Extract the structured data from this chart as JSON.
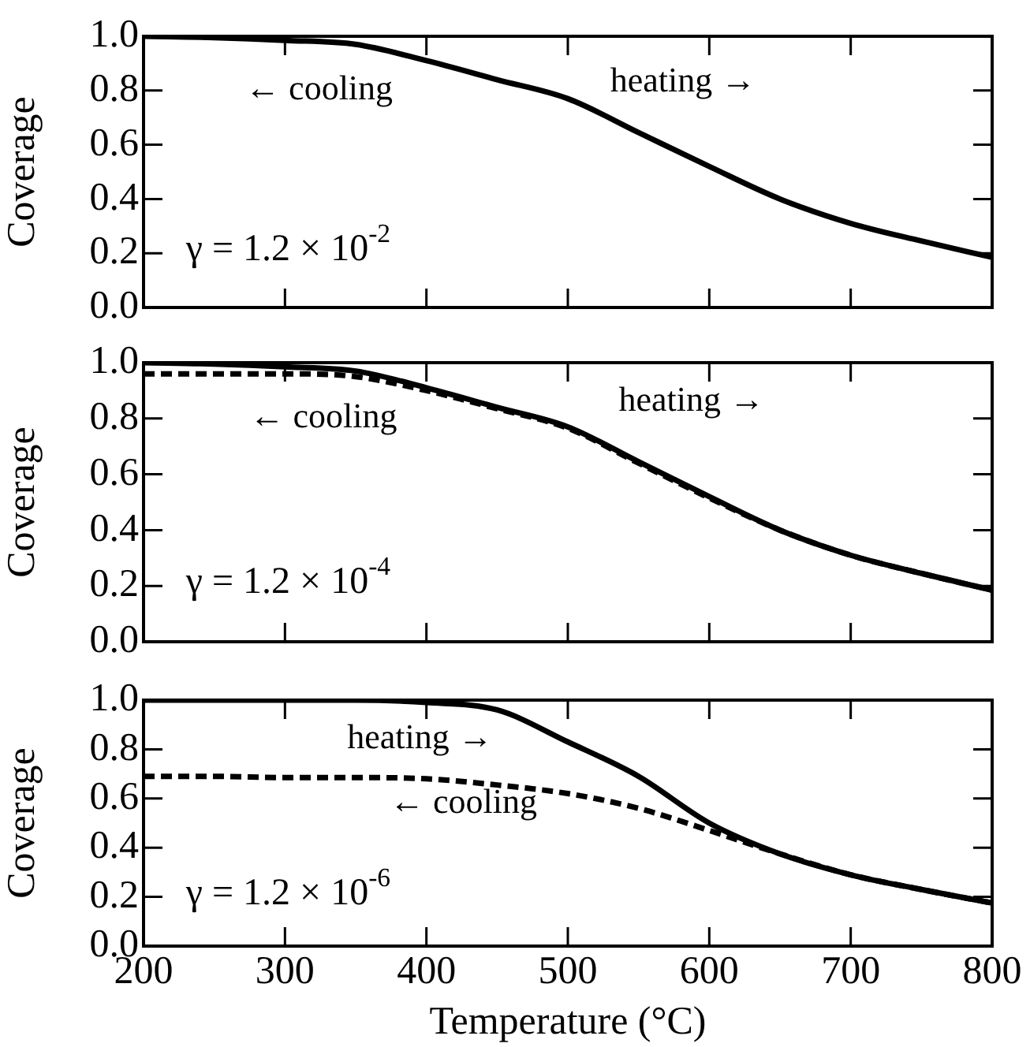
{
  "chart_data": [
    {
      "type": "line",
      "ylabel": "Coverage",
      "xlim": [
        200,
        800
      ],
      "xticks": [
        200,
        300,
        400,
        500,
        600,
        700,
        800
      ],
      "ylim": [
        0,
        1
      ],
      "yticks": [
        {
          "value": 0,
          "label": "0.0"
        },
        {
          "value": 0.2,
          "label": "0.2"
        },
        {
          "value": 0.4,
          "label": "0.4"
        },
        {
          "value": 0.6,
          "label": "0.6"
        },
        {
          "value": 0.8,
          "label": "0.8"
        },
        {
          "value": 1,
          "label": "1.0"
        }
      ],
      "tick_labels": "y",
      "marker": "none",
      "x": [
        200,
        250,
        300,
        350,
        400,
        450,
        500,
        550,
        600,
        650,
        700,
        750,
        800
      ],
      "series": [
        {
          "color": "#000000",
          "line_style": "solid",
          "values": [
            1.0,
            0.995,
            0.985,
            0.97,
            0.91,
            0.84,
            0.77,
            0.645,
            0.52,
            0.4,
            0.31,
            0.245,
            0.185
          ]
        }
      ],
      "annotations": [
        "← cooling",
        "heating →",
        "γ = 1.2 × 10$^{-2}$"
      ]
    },
    {
      "type": "line",
      "ylabel": "Coverage",
      "xlim": [
        200,
        800
      ],
      "xticks": [
        200,
        300,
        400,
        500,
        600,
        700,
        800
      ],
      "ylim": [
        0,
        1
      ],
      "yticks": [
        {
          "value": 0,
          "label": "0.0"
        },
        {
          "value": 0.2,
          "label": "0.2"
        },
        {
          "value": 0.4,
          "label": "0.4"
        },
        {
          "value": 0.6,
          "label": "0.6"
        },
        {
          "value": 0.8,
          "label": "0.8"
        },
        {
          "value": 1,
          "label": "1.0"
        }
      ],
      "tick_labels": "y",
      "marker": "none",
      "x": [
        200,
        250,
        300,
        350,
        400,
        450,
        500,
        550,
        600,
        650,
        700,
        750,
        800
      ],
      "series": [
        {
          "color": "#000000",
          "line_style": "solid",
          "values": [
            1.0,
            0.995,
            0.985,
            0.97,
            0.91,
            0.84,
            0.77,
            0.645,
            0.52,
            0.4,
            0.31,
            0.245,
            0.185
          ]
        },
        {
          "color": "#000000",
          "line_style": "dashed",
          "values": [
            0.96,
            0.96,
            0.96,
            0.95,
            0.9,
            0.835,
            0.765,
            0.64,
            0.515,
            0.4,
            0.31,
            0.245,
            0.185
          ]
        }
      ],
      "annotations": [
        "← cooling",
        "heating →",
        "γ = 1.2 × 10$^{-4}$"
      ]
    },
    {
      "type": "line",
      "ylabel": "Coverage",
      "xlabel": "Temperature (°C)",
      "xlim": [
        200,
        800
      ],
      "xticks": [
        200,
        300,
        400,
        500,
        600,
        700,
        800
      ],
      "ylim": [
        0,
        1
      ],
      "yticks": [
        {
          "value": 0,
          "label": "0.0"
        },
        {
          "value": 0.2,
          "label": "0.2"
        },
        {
          "value": 0.4,
          "label": "0.4"
        },
        {
          "value": 0.6,
          "label": "0.6"
        },
        {
          "value": 0.8,
          "label": "0.8"
        },
        {
          "value": 1,
          "label": "1.0"
        }
      ],
      "marker": "none",
      "x": [
        200,
        250,
        300,
        350,
        400,
        450,
        500,
        550,
        600,
        650,
        700,
        750,
        800
      ],
      "series": [
        {
          "color": "#000000",
          "line_style": "solid",
          "values": [
            1.0,
            1.0,
            1.0,
            1.0,
            0.99,
            0.96,
            0.83,
            0.69,
            0.5,
            0.375,
            0.29,
            0.23,
            0.175
          ]
        },
        {
          "color": "#000000",
          "line_style": "dashed",
          "values": [
            0.69,
            0.69,
            0.685,
            0.685,
            0.68,
            0.655,
            0.62,
            0.56,
            0.47,
            0.375,
            0.29,
            0.23,
            0.175
          ]
        }
      ],
      "annotations": [
        "heating →",
        "← cooling",
        "γ = 1.2 × 10$^{-6}$"
      ]
    }
  ]
}
